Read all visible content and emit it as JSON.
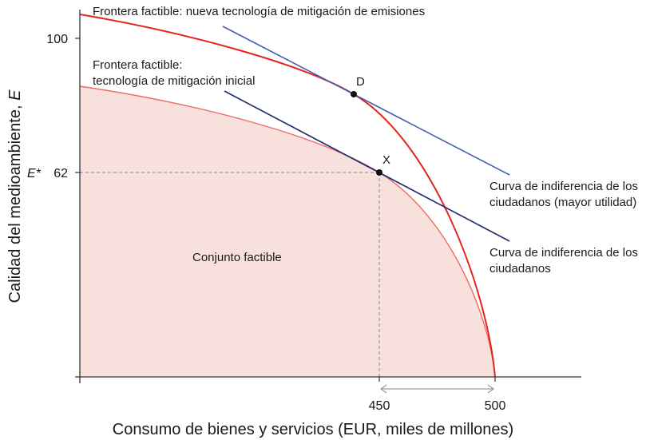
{
  "figure": {
    "axes": {
      "x_label": "Consumo de bienes y servicios (EUR, miles de millones)",
      "y_label": "Calidad del medioambiente, ",
      "y_label_var": "E",
      "x_ticks": [
        "450",
        "500"
      ],
      "y_ticks": [
        "100",
        "62"
      ],
      "y_marker_label": "E*"
    },
    "curves": {
      "new_frontier": "Frontera factible: nueva tecnología de mitigación de emisiones",
      "initial_frontier_line1": "Frontera factible:",
      "initial_frontier_line2": "tecnología de mitigación inicial",
      "ic_high_line1": "Curva de indiferencia de los",
      "ic_high_line2": "ciudadanos (mayor utilidad)",
      "ic_low_line1": "Curva de indiferencia de los",
      "ic_low_line2": "ciudadanos"
    },
    "region_label": "Conjunto factible",
    "points": {
      "d": "D",
      "x": "X"
    },
    "colors": {
      "frontier_red": "#e2261d",
      "frontier_thin": "#ee6a63",
      "region_fill": "#f8e1dc",
      "ic_high": "#3f5eb0",
      "ic_low": "#1c2a6b",
      "axis": "#333333",
      "guide": "#8a8a8a"
    },
    "chart_data": {
      "type": "line",
      "xlabel": "Consumo de bienes y servicios (EUR, miles de millones)",
      "ylabel": "Calidad del medioambiente, E",
      "x_ticks": [
        450,
        500
      ],
      "y_ticks": [
        62,
        100
      ],
      "points": [
        {
          "name": "X",
          "x": 450,
          "y": 62
        },
        {
          "name": "D",
          "x": 442,
          "y": 84
        }
      ],
      "shaded_region": "Conjunto factible"
    }
  }
}
